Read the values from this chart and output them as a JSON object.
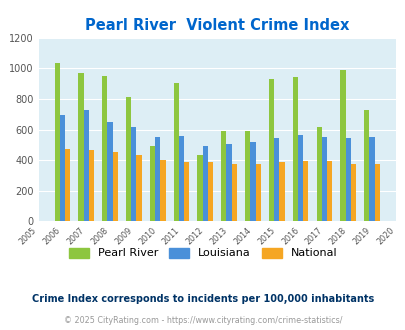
{
  "title": "Pearl River  Violent Crime Index",
  "years": [
    2006,
    2007,
    2008,
    2009,
    2010,
    2011,
    2012,
    2013,
    2014,
    2015,
    2016,
    2017,
    2018,
    2019
  ],
  "pearl_river": [
    1035,
    968,
    952,
    810,
    492,
    908,
    432,
    592,
    592,
    928,
    945,
    617,
    990,
    730
  ],
  "louisiana": [
    695,
    727,
    648,
    618,
    550,
    558,
    495,
    508,
    517,
    547,
    562,
    552,
    542,
    550
  ],
  "national": [
    470,
    463,
    452,
    432,
    403,
    390,
    390,
    375,
    377,
    385,
    393,
    397,
    377,
    377
  ],
  "pearl_river_color": "#8dc63f",
  "louisiana_color": "#4a90d9",
  "national_color": "#f5a623",
  "bg_color": "#ddeef5",
  "title_color": "#0066cc",
  "ylim": [
    0,
    1200
  ],
  "yticks": [
    0,
    200,
    400,
    600,
    800,
    1000,
    1200
  ],
  "bar_width": 0.22,
  "legend_labels": [
    "Pearl River",
    "Louisiana",
    "National"
  ],
  "footnote1": "Crime Index corresponds to incidents per 100,000 inhabitants",
  "footnote2": "© 2025 CityRating.com - https://www.cityrating.com/crime-statistics/",
  "footnote1_color": "#003366",
  "footnote2_color": "#999999",
  "grid_color": "#ffffff"
}
